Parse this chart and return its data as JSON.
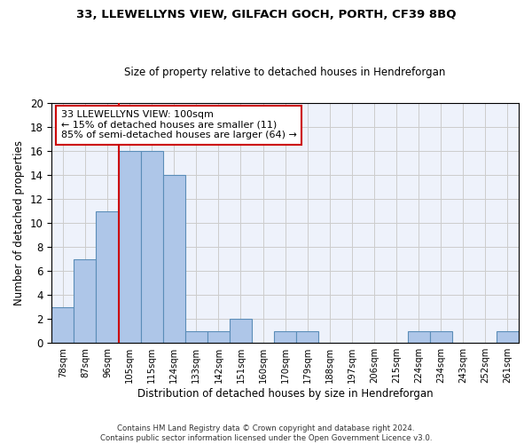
{
  "title1": "33, LLEWELLYNS VIEW, GILFACH GOCH, PORTH, CF39 8BQ",
  "title2": "Size of property relative to detached houses in Hendreforgan",
  "xlabel": "Distribution of detached houses by size in Hendreforgan",
  "ylabel": "Number of detached properties",
  "categories": [
    "78sqm",
    "87sqm",
    "96sqm",
    "105sqm",
    "115sqm",
    "124sqm",
    "133sqm",
    "142sqm",
    "151sqm",
    "160sqm",
    "170sqm",
    "179sqm",
    "188sqm",
    "197sqm",
    "206sqm",
    "215sqm",
    "224sqm",
    "234sqm",
    "243sqm",
    "252sqm",
    "261sqm"
  ],
  "values": [
    3,
    7,
    11,
    16,
    16,
    14,
    1,
    1,
    2,
    0,
    1,
    1,
    0,
    0,
    0,
    0,
    1,
    1,
    0,
    0,
    1
  ],
  "bar_color": "#aec6e8",
  "bar_edge_color": "#5b8db8",
  "grid_color": "#cccccc",
  "bg_color": "#eef2fb",
  "annotation_text": "33 LLEWELLYNS VIEW: 100sqm\n← 15% of detached houses are smaller (11)\n85% of semi-detached houses are larger (64) →",
  "annotation_box_color": "#ffffff",
  "annotation_box_edge": "#cc0000",
  "vline_x": 2.5,
  "vline_color": "#cc0000",
  "footer": "Contains HM Land Registry data © Crown copyright and database right 2024.\nContains public sector information licensed under the Open Government Licence v3.0.",
  "ylim": [
    0,
    20
  ],
  "yticks": [
    0,
    2,
    4,
    6,
    8,
    10,
    12,
    14,
    16,
    18,
    20
  ],
  "title1_fontsize": 9.5,
  "title2_fontsize": 8.5
}
